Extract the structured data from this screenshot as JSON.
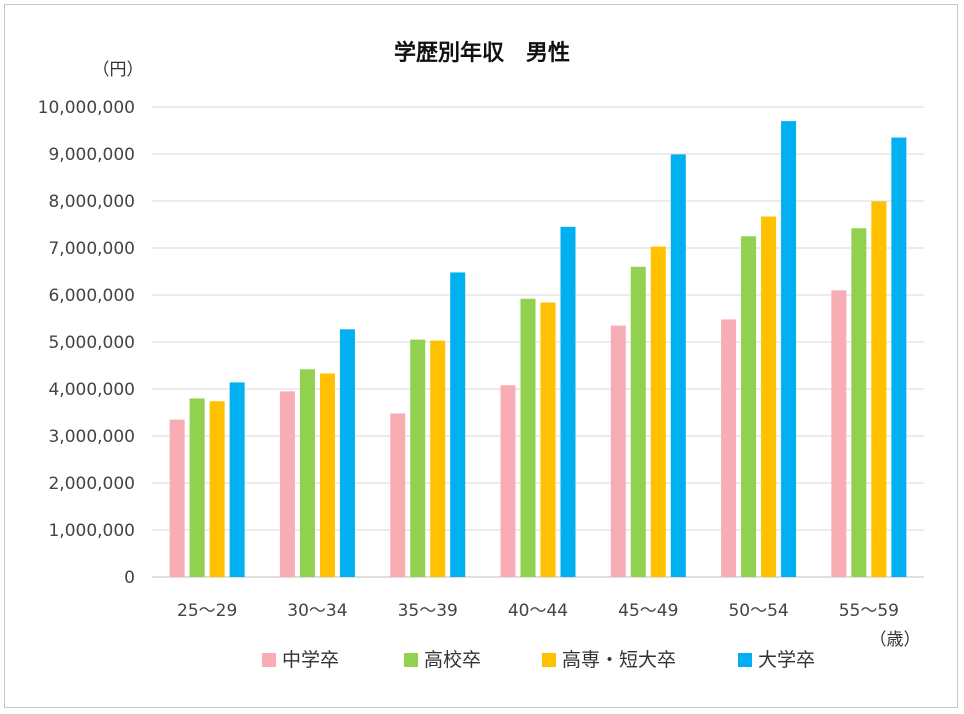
{
  "chart_data": {
    "type": "bar",
    "title": "学歴別年収　男性",
    "y_unit_label": "（円）",
    "x_unit_label": "（歳）",
    "xlabel": "",
    "ylabel": "",
    "ylim": [
      0,
      10000000
    ],
    "y_ticks": [
      0,
      1000000,
      2000000,
      3000000,
      4000000,
      5000000,
      6000000,
      7000000,
      8000000,
      9000000,
      10000000
    ],
    "y_tick_labels": [
      "0",
      "1,000,000",
      "2,000,000",
      "3,000,000",
      "4,000,000",
      "5,000,000",
      "6,000,000",
      "7,000,000",
      "8,000,000",
      "9,000,000",
      "10,000,000"
    ],
    "grid": true,
    "legend_position": "bottom",
    "categories": [
      "25～29",
      "30～34",
      "35～39",
      "40～44",
      "45～49",
      "50～54",
      "55～59"
    ],
    "series": [
      {
        "name": "中学卒",
        "color": "#f8adb4",
        "values": [
          3350000,
          3950000,
          3480000,
          4080000,
          5350000,
          5480000,
          6100000
        ]
      },
      {
        "name": "高校卒",
        "color": "#92d050",
        "values": [
          3800000,
          4420000,
          5050000,
          5920000,
          6600000,
          7250000,
          7420000
        ]
      },
      {
        "name": "高専・短大卒",
        "color": "#ffc000",
        "values": [
          3740000,
          4330000,
          5030000,
          5840000,
          7030000,
          7670000,
          7990000
        ]
      },
      {
        "name": "大学卒",
        "color": "#00b0f0",
        "values": [
          4140000,
          5270000,
          6480000,
          7450000,
          8990000,
          9700000,
          9350000
        ]
      }
    ]
  }
}
